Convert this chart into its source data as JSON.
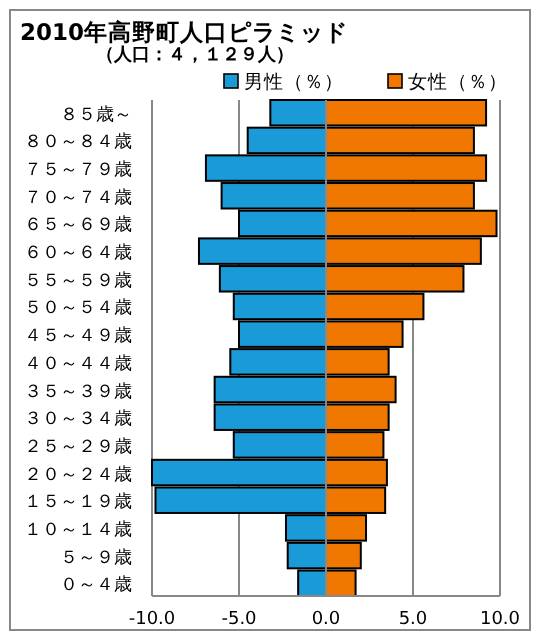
{
  "chart_data": {
    "type": "bar",
    "orientation": "horizontal",
    "title": "2010年高野町人口ピラミッド",
    "subtitle": "（人口：４，１２９人）",
    "categories": [
      "８５歳～",
      "８０～８４歳",
      "７５～７９歳",
      "７０～７４歳",
      "６５～６９歳",
      "６０～６４歳",
      "５５～５９歳",
      "５０～５４歳",
      "４５～４９歳",
      "４０～４４歳",
      "３５～３９歳",
      "３０～３４歳",
      "２５～２９歳",
      "２０～２４歳",
      "１５～１９歳",
      "１０～１４歳",
      "５～９歳",
      "０～４歳"
    ],
    "series": [
      {
        "name": "男性（％）",
        "color": "#1a9ad6",
        "values": [
          -3.2,
          -4.5,
          -6.9,
          -6.0,
          -5.0,
          -7.3,
          -6.1,
          -5.3,
          -5.0,
          -5.5,
          -6.4,
          -6.4,
          -5.3,
          -10.0,
          -9.8,
          -2.3,
          -2.2,
          -1.6
        ]
      },
      {
        "name": "女性（％）",
        "color": "#f07800",
        "values": [
          9.2,
          8.5,
          9.2,
          8.5,
          9.8,
          8.9,
          7.9,
          5.6,
          4.4,
          3.6,
          4.0,
          3.6,
          3.3,
          3.5,
          3.4,
          2.3,
          2.0,
          1.7
        ]
      }
    ],
    "xlim": [
      -10,
      10
    ],
    "xticks": [
      {
        "value": -10,
        "label": "-10.0"
      },
      {
        "value": -5,
        "label": "-5.0"
      },
      {
        "value": 0,
        "label": "0.0"
      },
      {
        "value": 5,
        "label": "5.0"
      },
      {
        "value": 10,
        "label": "10.0"
      }
    ],
    "stacked": true,
    "grid": "x",
    "legend": "top right"
  }
}
